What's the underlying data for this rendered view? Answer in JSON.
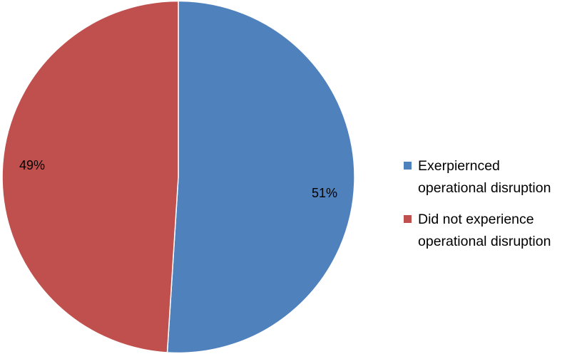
{
  "chart_data": {
    "type": "pie",
    "slices": [
      {
        "label": "Exerpiernced operational disruption",
        "legend_lines": [
          "Exerpiernced",
          "operational disruption"
        ],
        "value": 51,
        "data_label": "51%",
        "color": "#4F81BD"
      },
      {
        "label": "Did not experience operational disruption",
        "legend_lines": [
          "Did not experience",
          "operational disruption"
        ],
        "value": 49,
        "data_label": "49%",
        "color": "#C0504D"
      }
    ],
    "start_angle_deg": 0,
    "direction": "clockwise",
    "legend_position": "right"
  }
}
